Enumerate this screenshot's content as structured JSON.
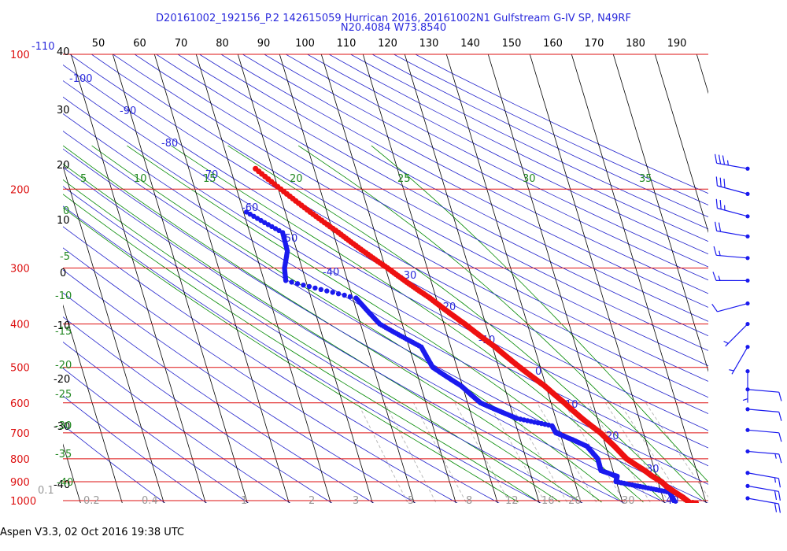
{
  "title": {
    "line1": "D20161002_192156_P.2 142615059 Hurrican 2016, 20161002N1 Gulfstream G-IV SP, N49RF",
    "line2": "N20.4084 W73.8540"
  },
  "footer": "Aspen V3.3, 02 Oct 2016  19:38 UTC",
  "colors": {
    "isobar": "#dd1111",
    "isotherm": "#000000",
    "dry_adiabat": "#2222cc",
    "moist_adiabat": "#008800",
    "mixing_ratio": "#bbbbbb",
    "temperature": "#ee1111",
    "dewpoint": "#1a1aee",
    "wind": "#1a1aee",
    "blue_text": "#2a2adc",
    "green_text": "#228822"
  },
  "chart_data": {
    "type": "scatter",
    "diagram": "skew-T log-P",
    "top_axis_ticks": [
      "50",
      "60",
      "70",
      "80",
      "90",
      "100",
      "110",
      "120",
      "130",
      "140",
      "150",
      "160",
      "170",
      "180",
      "190"
    ],
    "pressure_levels_hPa": [
      {
        "label": "100",
        "value": 100
      },
      {
        "label": "200",
        "value": 200
      },
      {
        "label": "300",
        "value": 300
      },
      {
        "label": "400",
        "value": 400
      },
      {
        "label": "500",
        "value": 500
      },
      {
        "label": "600",
        "value": 600
      },
      {
        "label": "700",
        "value": 700
      },
      {
        "label": "800",
        "value": 800
      },
      {
        "label": "900",
        "value": 900
      },
      {
        "label": "1000",
        "value": 1000
      }
    ],
    "isotherms_C": [
      40,
      30,
      20,
      10,
      0,
      -10,
      -20,
      -30,
      -40,
      -50,
      -60,
      -70,
      -80,
      -90,
      -100,
      -110
    ],
    "isotherm_labels": [
      "-110",
      "40",
      "30",
      "20",
      "10",
      "0",
      "-10",
      "-20",
      "-30",
      "-40"
    ],
    "dry_adiabat_labels": [
      "-100",
      "-90",
      "-80",
      "-70",
      "-60",
      "-50",
      "-40",
      "-30",
      "-20",
      "-10",
      "0",
      "10",
      "20",
      "30",
      "40"
    ],
    "moist_adiabat_labels": [
      "5",
      "10",
      "15",
      "20",
      "25",
      "30",
      "35",
      "0",
      "-5",
      "-10",
      "-15",
      "-20",
      "-25",
      "-30",
      "-35",
      "-40"
    ],
    "mixing_ratio_labels": [
      "0.1",
      "0.2",
      "0.4",
      "1",
      "2",
      "3",
      "5",
      "8",
      "12",
      "16",
      "20",
      "30"
    ],
    "series": [
      {
        "name": "Temperature",
        "points": [
          {
            "p": 1005,
            "t": 27.6
          },
          {
            "p": 1000,
            "t": 26.0
          },
          {
            "p": 975,
            "t": 24.8
          },
          {
            "p": 950,
            "t": 23.3
          },
          {
            "p": 925,
            "t": 21.8
          },
          {
            "p": 900,
            "t": 20.8
          },
          {
            "p": 875,
            "t": 19.0
          },
          {
            "p": 850,
            "t": 17.6
          },
          {
            "p": 800,
            "t": 14.1
          },
          {
            "p": 750,
            "t": 12.1
          },
          {
            "p": 700,
            "t": 9.7
          },
          {
            "p": 650,
            "t": 6.3
          },
          {
            "p": 600,
            "t": 3.2
          },
          {
            "p": 550,
            "t": -0.3
          },
          {
            "p": 500,
            "t": -4.9
          },
          {
            "p": 450,
            "t": -9.4
          },
          {
            "p": 400,
            "t": -15.0
          },
          {
            "p": 350,
            "t": -21.5
          },
          {
            "p": 300,
            "t": -29.5
          },
          {
            "p": 250,
            "t": -38.7
          },
          {
            "p": 225,
            "t": -44.0
          },
          {
            "p": 205,
            "t": -48.3
          },
          {
            "p": 180,
            "t": -54.0
          }
        ]
      },
      {
        "name": "Dewpoint",
        "points": [
          {
            "p": 1005,
            "td": 22.6
          },
          {
            "p": 975,
            "td": 22.3
          },
          {
            "p": 950,
            "td": 22.0
          },
          {
            "p": 925,
            "td": 16.0
          },
          {
            "p": 900,
            "td": 9.9
          },
          {
            "p": 875,
            "td": 10.6
          },
          {
            "p": 850,
            "td": 7.1
          },
          {
            "p": 800,
            "td": 7.2
          },
          {
            "p": 750,
            "td": 5.5
          },
          {
            "p": 725,
            "td": 2.5
          },
          {
            "p": 700,
            "td": -1.0
          },
          {
            "p": 675,
            "td": -1.4
          },
          {
            "p": 650,
            "td": -9.3
          },
          {
            "p": 600,
            "td": -16.9
          },
          {
            "p": 550,
            "td": -20.3
          },
          {
            "p": 500,
            "td": -25.8
          },
          {
            "p": 450,
            "td": -27.1
          },
          {
            "p": 400,
            "td": -35.4
          },
          {
            "p": 350,
            "td": -39.2
          },
          {
            "p": 320,
            "td": -54.8
          },
          {
            "p": 300,
            "td": -54.2
          },
          {
            "p": 275,
            "td": -52.3
          },
          {
            "p": 250,
            "td": -52.1
          },
          {
            "p": 225,
            "td": -59.3
          }
        ]
      }
    ],
    "wind_barbs": [
      {
        "p": 180,
        "dir": 280,
        "spd_kt": 35
      },
      {
        "p": 205,
        "dir": 285,
        "spd_kt": 30
      },
      {
        "p": 230,
        "dir": 285,
        "spd_kt": 25
      },
      {
        "p": 255,
        "dir": 280,
        "spd_kt": 20
      },
      {
        "p": 285,
        "dir": 275,
        "spd_kt": 15
      },
      {
        "p": 320,
        "dir": 270,
        "spd_kt": 15
      },
      {
        "p": 360,
        "dir": 255,
        "spd_kt": 10
      },
      {
        "p": 400,
        "dir": 225,
        "spd_kt": 5
      },
      {
        "p": 450,
        "dir": 210,
        "spd_kt": 5
      },
      {
        "p": 510,
        "dir": 180,
        "spd_kt": 5
      },
      {
        "p": 560,
        "dir": 95,
        "spd_kt": 10
      },
      {
        "p": 620,
        "dir": 95,
        "spd_kt": 10
      },
      {
        "p": 690,
        "dir": 95,
        "spd_kt": 10
      },
      {
        "p": 770,
        "dir": 95,
        "spd_kt": 15
      },
      {
        "p": 860,
        "dir": 100,
        "spd_kt": 15
      },
      {
        "p": 920,
        "dir": 100,
        "spd_kt": 20
      },
      {
        "p": 980,
        "dir": 100,
        "spd_kt": 20
      }
    ]
  }
}
